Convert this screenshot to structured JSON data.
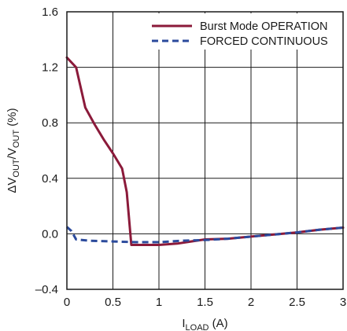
{
  "chart_data": {
    "type": "line",
    "xlabel": {
      "main": "I",
      "sub": "LOAD",
      "unit": " (A)"
    },
    "ylabel": {
      "prefix": "ΔV",
      "sub1": "OUT",
      "mid": "/V",
      "sub2": "OUT",
      "suffix": " (%)"
    },
    "xlim": [
      0,
      3
    ],
    "ylim": [
      -0.4,
      1.6
    ],
    "xticks": [
      0,
      0.5,
      1,
      1.5,
      2,
      2.5,
      3
    ],
    "xtick_labels": [
      "0",
      "0.5",
      "1",
      "1.5",
      "2",
      "2.5",
      "3"
    ],
    "yticks": [
      -0.4,
      0,
      0.4,
      0.8,
      1.2,
      1.6
    ],
    "ytick_labels": [
      "–0.4",
      "0.0",
      "0.4",
      "0.8",
      "1.2",
      "1.6"
    ],
    "grid": true,
    "legend_position": "top-right",
    "series": [
      {
        "name": "Burst Mode OPERATION",
        "color": "#8b1a3a",
        "style": "solid",
        "points": [
          [
            0,
            1.27
          ],
          [
            0.1,
            1.2
          ],
          [
            0.2,
            0.91
          ],
          [
            0.3,
            0.79
          ],
          [
            0.4,
            0.68
          ],
          [
            0.5,
            0.58
          ],
          [
            0.6,
            0.47
          ],
          [
            0.65,
            0.3
          ],
          [
            0.7,
            -0.08
          ],
          [
            0.8,
            -0.08
          ],
          [
            0.9,
            -0.08
          ],
          [
            1.0,
            -0.08
          ],
          [
            1.1,
            -0.075
          ],
          [
            1.2,
            -0.07
          ],
          [
            1.3,
            -0.06
          ],
          [
            1.5,
            -0.04
          ],
          [
            1.75,
            -0.035
          ],
          [
            2.0,
            -0.02
          ],
          [
            2.25,
            -0.005
          ],
          [
            2.5,
            0.01
          ],
          [
            2.75,
            0.03
          ],
          [
            3.0,
            0.045
          ]
        ]
      },
      {
        "name": "FORCED CONTINUOUS",
        "color": "#2b4a9c",
        "style": "dashed",
        "points": [
          [
            0,
            0.05
          ],
          [
            0.05,
            0.02
          ],
          [
            0.1,
            -0.04
          ],
          [
            0.25,
            -0.05
          ],
          [
            0.5,
            -0.055
          ],
          [
            0.75,
            -0.06
          ],
          [
            1.0,
            -0.06
          ],
          [
            1.25,
            -0.05
          ],
          [
            1.5,
            -0.045
          ],
          [
            1.75,
            -0.035
          ],
          [
            2.0,
            -0.02
          ],
          [
            2.25,
            -0.005
          ],
          [
            2.5,
            0.01
          ],
          [
            2.75,
            0.03
          ],
          [
            3.0,
            0.045
          ]
        ]
      }
    ]
  }
}
